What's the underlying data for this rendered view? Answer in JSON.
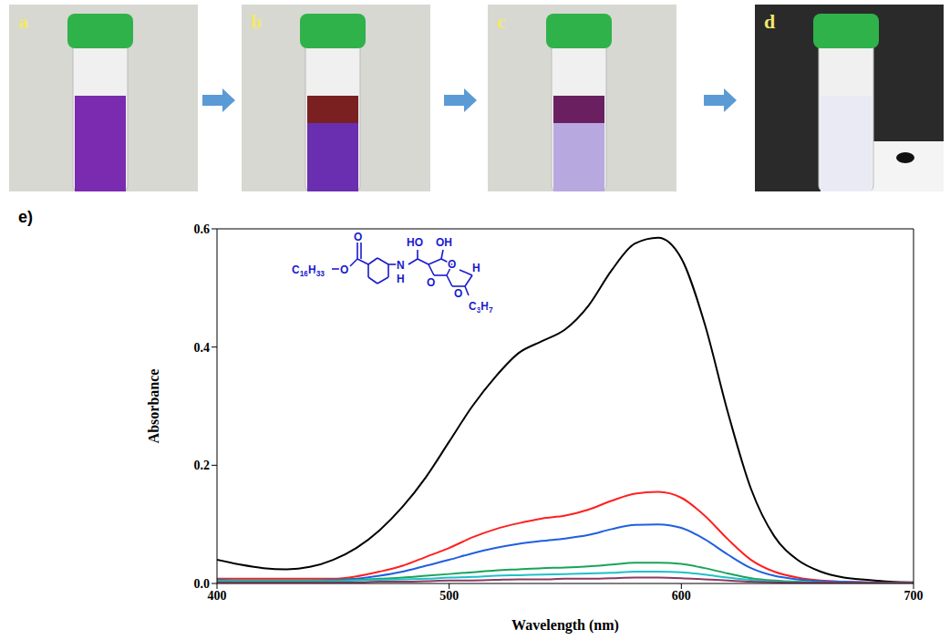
{
  "photo_labels": [
    "a",
    "b",
    "c",
    "d"
  ],
  "chart_label": "e)",
  "structure_labels": [
    "C16H33",
    "O",
    "O",
    "HO",
    "OH",
    "N",
    "H",
    "O",
    "O",
    "O",
    "H",
    "C3H7"
  ],
  "chart_data": {
    "type": "line",
    "x_label": "Wavelength (nm)",
    "y_label": "Absorbance",
    "x": [
      400,
      410,
      420,
      430,
      440,
      450,
      460,
      470,
      480,
      490,
      500,
      510,
      520,
      530,
      540,
      550,
      560,
      570,
      580,
      590,
      600,
      610,
      620,
      630,
      640,
      650,
      660,
      670,
      680,
      690,
      700
    ],
    "xlim": [
      400,
      700
    ],
    "xticks": [
      400,
      500,
      600,
      700
    ],
    "ylim": [
      0,
      0.6
    ],
    "yticks": [
      {
        "value": 0,
        "label": "0.0"
      },
      {
        "value": 0.2,
        "label": "0.2"
      },
      {
        "value": 0.4,
        "label": "0.4"
      },
      {
        "value": 0.6,
        "label": "0.6"
      }
    ],
    "grid": false,
    "series": [
      {
        "color": "#000000",
        "values": [
          0.04,
          0.032,
          0.026,
          0.024,
          0.028,
          0.04,
          0.06,
          0.09,
          0.13,
          0.18,
          0.24,
          0.3,
          0.35,
          0.39,
          0.41,
          0.43,
          0.47,
          0.53,
          0.575,
          0.585,
          0.55,
          0.44,
          0.29,
          0.16,
          0.08,
          0.04,
          0.02,
          0.01,
          0.006,
          0.003,
          0.002
        ]
      },
      {
        "color": "#ff2020",
        "values": [
          0.008,
          0.008,
          0.008,
          0.008,
          0.008,
          0.008,
          0.012,
          0.02,
          0.03,
          0.045,
          0.06,
          0.078,
          0.092,
          0.102,
          0.11,
          0.115,
          0.125,
          0.14,
          0.152,
          0.155,
          0.145,
          0.115,
          0.075,
          0.04,
          0.02,
          0.01,
          0.005,
          0.003,
          0.002,
          0.001,
          0.001
        ]
      },
      {
        "color": "#1f5fe0",
        "values": [
          0.006,
          0.005,
          0.005,
          0.005,
          0.005,
          0.006,
          0.008,
          0.013,
          0.02,
          0.03,
          0.04,
          0.051,
          0.06,
          0.067,
          0.072,
          0.076,
          0.082,
          0.092,
          0.099,
          0.1,
          0.094,
          0.075,
          0.049,
          0.026,
          0.013,
          0.007,
          0.004,
          0.003,
          0.002,
          0.001,
          0.001
        ]
      },
      {
        "color": "#1aa35a",
        "values": [
          0.005,
          0.005,
          0.005,
          0.005,
          0.005,
          0.005,
          0.006,
          0.008,
          0.01,
          0.013,
          0.016,
          0.019,
          0.022,
          0.024,
          0.026,
          0.027,
          0.029,
          0.032,
          0.035,
          0.035,
          0.033,
          0.026,
          0.017,
          0.009,
          0.005,
          0.003,
          0.002,
          0.001,
          0.001,
          0.001,
          0.001
        ]
      },
      {
        "color": "#20c0c8",
        "values": [
          0.004,
          0.004,
          0.004,
          0.004,
          0.004,
          0.004,
          0.005,
          0.006,
          0.007,
          0.008,
          0.01,
          0.011,
          0.013,
          0.014,
          0.015,
          0.016,
          0.017,
          0.018,
          0.02,
          0.02,
          0.019,
          0.015,
          0.01,
          0.006,
          0.003,
          0.002,
          0.001,
          0.001,
          0.001,
          0.001,
          0.001
        ]
      },
      {
        "color": "#8b3a62",
        "values": [
          0.002,
          0.002,
          0.002,
          0.002,
          0.002,
          0.002,
          0.002,
          0.003,
          0.003,
          0.004,
          0.005,
          0.005,
          0.006,
          0.007,
          0.007,
          0.008,
          0.008,
          0.009,
          0.01,
          0.01,
          0.009,
          0.007,
          0.005,
          0.003,
          0.002,
          0.001,
          0.001,
          0.001,
          0.001,
          0.001,
          0.001
        ]
      }
    ]
  }
}
